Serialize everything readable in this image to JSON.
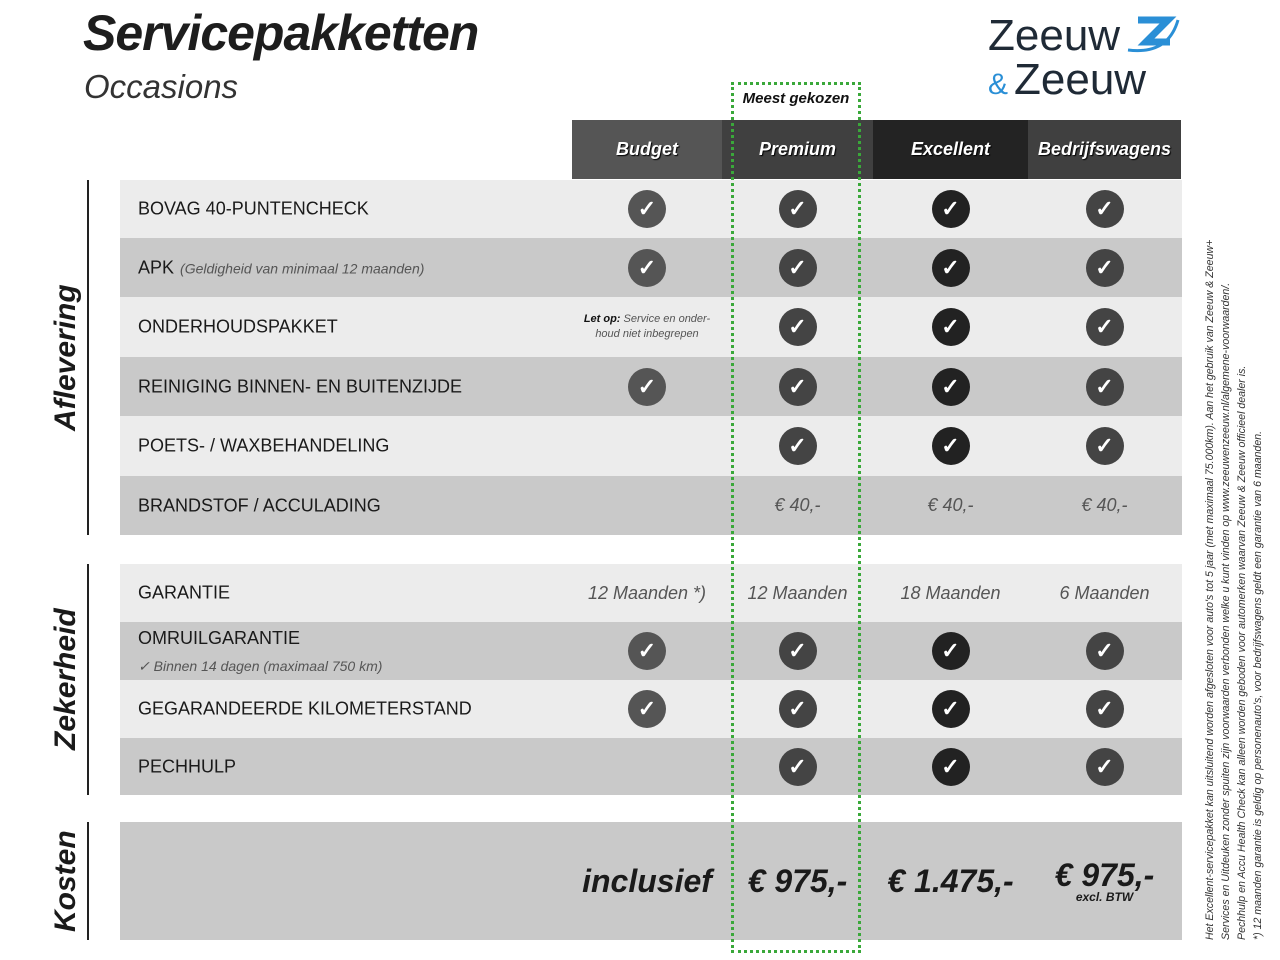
{
  "header": {
    "title": "Servicepakketten",
    "subtitle": "Occasions",
    "logo_text": "Zeeuw & Zeeuw",
    "badge": "Meest gekozen"
  },
  "colors": {
    "accent_green": "#3aa83a",
    "logo_blue": "#2a8fd6",
    "row_light": "#ececec",
    "row_dark": "#c9c9c9"
  },
  "packages": [
    {
      "name": "Budget",
      "header_color": "#555555",
      "check_color": "#555555"
    },
    {
      "name": "Premium",
      "header_color": "#404040",
      "check_color": "#444444"
    },
    {
      "name": "Excellent",
      "header_color": "#232323",
      "check_color": "#222222"
    },
    {
      "name": "Bedrijfswagens",
      "header_color": "#404040",
      "check_color": "#444444"
    }
  ],
  "sections": [
    {
      "label": "Aflevering",
      "rows": [
        {
          "label": "BOVAG 40-PUNTENCHECK",
          "cells": [
            "check",
            "check",
            "check",
            "check"
          ]
        },
        {
          "label": "APK",
          "sub": "(Geldigheid van minimaal 12 maanden)",
          "cells": [
            "check",
            "check",
            "check",
            "check"
          ]
        },
        {
          "label": "ONDERHOUDSPAKKET",
          "cells": [
            {
              "note_bold": "Let op:",
              "note": "Service en onder-houd niet inbegrepen"
            },
            "check",
            "check",
            "check"
          ]
        },
        {
          "label": "REINIGING BINNEN- EN BUITENZIJDE",
          "cells": [
            "check",
            "check",
            "check",
            "check"
          ]
        },
        {
          "label": "POETS- / WAXBEHANDELING",
          "cells": [
            "",
            "check",
            "check",
            "check"
          ]
        },
        {
          "label": "BRANDSTOF / ACCULADING",
          "cells": [
            "",
            "€ 40,-",
            "€ 40,-",
            "€ 40,-"
          ]
        }
      ]
    },
    {
      "label": "Zekerheid",
      "rows": [
        {
          "label": "GARANTIE",
          "cells": [
            "12 Maanden *)",
            "12 Maanden",
            "18 Maanden",
            "6 Maanden"
          ]
        },
        {
          "label": "OMRUILGARANTIE",
          "sub2": "✓   Binnen 14 dagen (maximaal 750 km)",
          "cells": [
            "check",
            "check",
            "check",
            "check"
          ]
        },
        {
          "label": "GEGARANDEERDE KILOMETERSTAND",
          "cells": [
            "check",
            "check",
            "check",
            "check"
          ]
        },
        {
          "label": "PECHHULP",
          "cells": [
            "",
            "check",
            "check",
            "check"
          ]
        }
      ]
    },
    {
      "label": "Kosten",
      "rows": [
        {
          "label": "",
          "cells": [
            {
              "price": "inclusief"
            },
            {
              "price": "€ 975,-"
            },
            {
              "price": "€ 1.475,-"
            },
            {
              "price": "€ 975,-",
              "sub": "excl. BTW"
            }
          ]
        }
      ]
    }
  ],
  "footnotes": [
    "Het Excellent-servicepakket kan uitsluitend worden afgesloten voor auto's tot 5 jaar (met maximaal 75.000km). Aan het gebruik van Zeeuw & Zeeuw+",
    "Services en Uitdeuken zonder spuiten zijn voorwaarden verbonden welke u kunt vinden op www.zeeuwenzeeuw.nl/algemene-voorwaarden/.",
    "Pechhulp en Accu Health Check kan alleen worden geboden voor automerken waarvan Zeeuw & Zeeuw officieel dealer is.",
    "*) 12 maanden garantie is geldig op personenauto's, voor bedrijfswagens geldt een garantie van 6 maanden."
  ]
}
